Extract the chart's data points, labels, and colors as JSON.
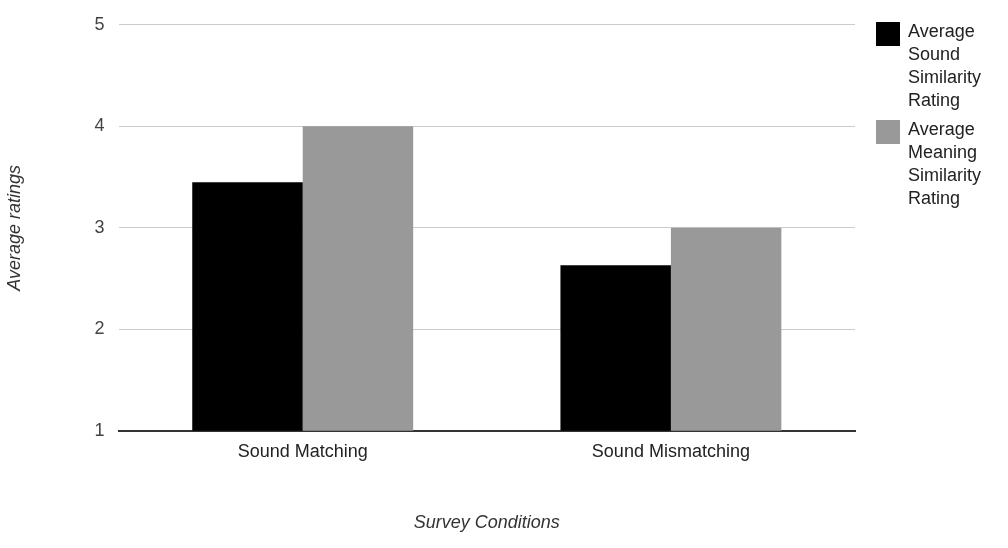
{
  "chart_data": {
    "type": "bar",
    "xlabel": "Survey Conditions",
    "ylabel": "Average ratings",
    "categories": [
      "Sound Matching",
      "Sound Mismatching"
    ],
    "series": [
      {
        "name": "Average Sound Similarity Rating",
        "color": "#000000",
        "values": [
          3.45,
          2.63
        ]
      },
      {
        "name": "Average Meaning Similarity Rating",
        "color": "#999999",
        "values": [
          4.0,
          3.0
        ]
      }
    ],
    "ylim": [
      1,
      5
    ],
    "yticks": [
      1,
      2,
      3,
      4,
      5
    ],
    "grid": "y",
    "legend": "right"
  }
}
